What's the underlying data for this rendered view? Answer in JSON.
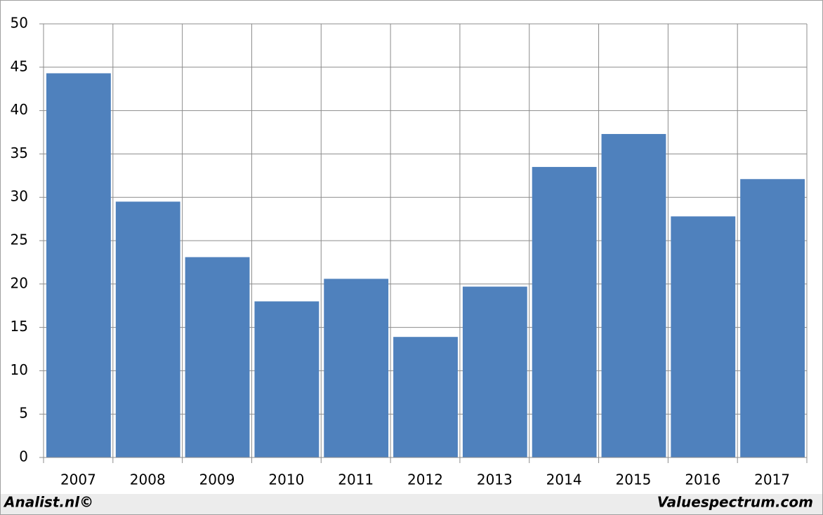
{
  "chart_data": {
    "type": "bar",
    "categories": [
      "2007",
      "2008",
      "2009",
      "2010",
      "2011",
      "2012",
      "2013",
      "2014",
      "2015",
      "2016",
      "2017"
    ],
    "values": [
      44.3,
      29.5,
      23.1,
      18.0,
      20.6,
      13.9,
      19.7,
      33.5,
      37.3,
      27.8,
      32.1
    ],
    "color": "#4f81bd",
    "ylim": [
      0,
      50
    ],
    "yticks": [
      0,
      5,
      10,
      15,
      20,
      25,
      30,
      35,
      40,
      45,
      50
    ],
    "grid": true
  },
  "footer": {
    "left": "Analist.nl©",
    "right": "Valuespectrum.com"
  }
}
